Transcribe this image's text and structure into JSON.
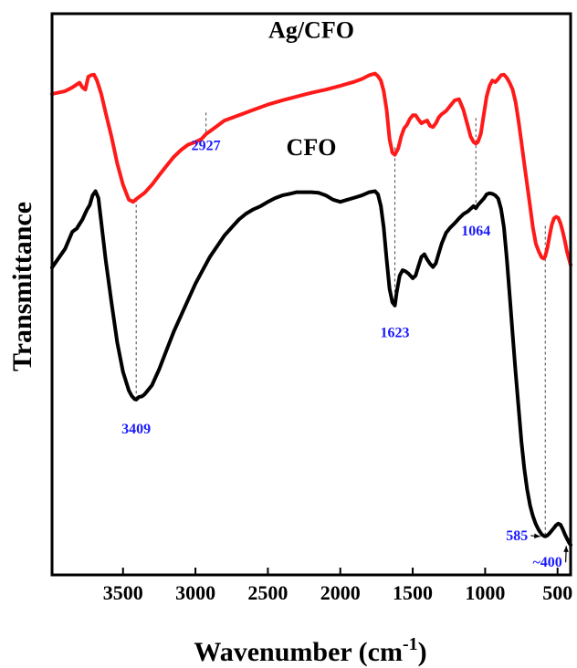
{
  "chart_data": {
    "type": "line",
    "xlabel_main": "Wavenumber (cm",
    "xlabel_sup": "-1",
    "xlabel_close": ")",
    "ylabel": "Transmittance",
    "xlim": [
      3990,
      410
    ],
    "x_reversed": true,
    "x_ticks": [
      3500,
      3000,
      2500,
      2000,
      1500,
      1000,
      500
    ],
    "y_ticks_shown": false,
    "grid": false,
    "colors": {
      "Ag/CFO": "#ff1a1a",
      "CFO": "#000000",
      "peak_labels": "#1a1aff",
      "axis": "#000000"
    },
    "series": [
      {
        "name": "Ag/CFO",
        "x": [
          3990,
          3900,
          3850,
          3800,
          3780,
          3760,
          3740,
          3720,
          3700,
          3680,
          3650,
          3620,
          3580,
          3540,
          3500,
          3460,
          3430,
          3400,
          3350,
          3300,
          3250,
          3200,
          3150,
          3100,
          3050,
          3000,
          2960,
          2927,
          2900,
          2850,
          2800,
          2700,
          2600,
          2500,
          2400,
          2300,
          2200,
          2100,
          2000,
          1900,
          1850,
          1800,
          1760,
          1740,
          1720,
          1700,
          1680,
          1660,
          1640,
          1623,
          1600,
          1580,
          1560,
          1540,
          1520,
          1500,
          1480,
          1460,
          1440,
          1420,
          1400,
          1380,
          1360,
          1340,
          1320,
          1300,
          1270,
          1240,
          1210,
          1180,
          1150,
          1120,
          1100,
          1080,
          1064,
          1050,
          1030,
          1010,
          990,
          970,
          950,
          930,
          910,
          890,
          870,
          850,
          830,
          810,
          790,
          770,
          750,
          730,
          710,
          690,
          670,
          650,
          630,
          610,
          595,
          585,
          570,
          555,
          540,
          525,
          510,
          495,
          480,
          465,
          450,
          435,
          420,
          410
        ],
        "y": [
          86.0,
          86.5,
          87.2,
          88.1,
          87.2,
          86.8,
          89.2,
          89.5,
          89.6,
          88.5,
          86.0,
          82.5,
          78.0,
          73.0,
          69.0,
          66.2,
          65.8,
          66.5,
          67.5,
          69.0,
          70.8,
          72.5,
          74.2,
          75.5,
          76.5,
          77.0,
          77.5,
          78.5,
          79.0,
          80.0,
          81.0,
          82.0,
          83.0,
          84.0,
          84.8,
          85.5,
          86.2,
          86.8,
          87.5,
          88.3,
          88.8,
          89.5,
          89.8,
          89.3,
          88.5,
          86.5,
          83.0,
          77.5,
          75.0,
          74.6,
          75.8,
          78.0,
          79.5,
          80.2,
          81.3,
          82.0,
          82.0,
          81.2,
          80.5,
          80.8,
          81.0,
          80.0,
          79.8,
          80.5,
          81.6,
          82.2,
          82.8,
          83.8,
          84.8,
          85.0,
          83.0,
          80.0,
          78.0,
          77.0,
          76.7,
          77.0,
          78.5,
          82.0,
          85.5,
          87.5,
          88.5,
          88.2,
          88.8,
          89.5,
          89.6,
          89.0,
          88.0,
          86.8,
          84.5,
          81.0,
          77.0,
          73.0,
          69.0,
          65.0,
          61.0,
          58.0,
          56.5,
          55.4,
          55.2,
          55.6,
          57.2,
          59.5,
          61.5,
          62.7,
          63.0,
          62.8,
          61.8,
          60.3,
          58.5,
          56.5,
          55.0,
          54.0
        ]
      },
      {
        "name": "CFO",
        "x": [
          3990,
          3900,
          3850,
          3820,
          3780,
          3750,
          3730,
          3710,
          3690,
          3670,
          3650,
          3620,
          3580,
          3540,
          3500,
          3460,
          3440,
          3420,
          3409,
          3390,
          3370,
          3350,
          3300,
          3250,
          3200,
          3150,
          3100,
          3050,
          3000,
          2950,
          2900,
          2850,
          2800,
          2750,
          2700,
          2650,
          2600,
          2550,
          2500,
          2450,
          2400,
          2350,
          2300,
          2250,
          2200,
          2150,
          2100,
          2050,
          2000,
          1950,
          1900,
          1850,
          1800,
          1760,
          1740,
          1720,
          1700,
          1680,
          1660,
          1640,
          1623,
          1610,
          1590,
          1570,
          1550,
          1530,
          1500,
          1480,
          1460,
          1440,
          1420,
          1400,
          1380,
          1360,
          1340,
          1320,
          1300,
          1270,
          1240,
          1210,
          1180,
          1150,
          1120,
          1100,
          1080,
          1064,
          1050,
          1030,
          1010,
          990,
          970,
          950,
          930,
          910,
          890,
          870,
          850,
          830,
          810,
          790,
          770,
          750,
          730,
          710,
          690,
          670,
          650,
          630,
          610,
          595,
          585,
          570,
          555,
          540,
          525,
          510,
          495,
          480,
          465,
          450,
          435,
          420,
          410
        ],
        "y": [
          53.5,
          57.0,
          60.2,
          60.8,
          62.5,
          64.3,
          65.2,
          67.0,
          67.8,
          66.5,
          62.0,
          55.0,
          47.0,
          39.5,
          34.0,
          30.5,
          29.5,
          28.9,
          28.8,
          29.3,
          29.4,
          29.8,
          31.5,
          34.5,
          38.0,
          41.5,
          44.5,
          47.5,
          50.5,
          53.0,
          55.5,
          57.5,
          59.5,
          61.0,
          62.5,
          63.6,
          64.4,
          65.0,
          65.8,
          66.5,
          67.0,
          67.3,
          67.6,
          67.6,
          67.6,
          67.5,
          67.0,
          66.2,
          65.8,
          66.2,
          66.6,
          67.0,
          67.6,
          67.8,
          67.2,
          65.0,
          61.0,
          55.0,
          49.5,
          47.0,
          46.4,
          49.0,
          52.0,
          53.0,
          52.8,
          52.4,
          51.5,
          52.0,
          53.8,
          55.5,
          56.0,
          55.0,
          54.2,
          53.6,
          54.3,
          56.2,
          58.0,
          60.0,
          61.0,
          61.8,
          62.7,
          63.5,
          64.0,
          64.5,
          65.0,
          64.6,
          65.2,
          65.8,
          66.4,
          67.2,
          67.4,
          67.3,
          67.0,
          66.4,
          64.5,
          61.0,
          55.0,
          48.0,
          41.0,
          34.0,
          27.5,
          21.0,
          16.0,
          12.0,
          9.0,
          7.0,
          5.5,
          4.4,
          3.6,
          3.3,
          3.2,
          3.4,
          3.8,
          4.3,
          4.8,
          5.3,
          5.6,
          5.4,
          4.6,
          3.6,
          2.8,
          2.0,
          1.6
        ]
      }
    ],
    "ylim": [
      -4,
      101
    ],
    "series_labels": [
      {
        "text": "Ag/CFO",
        "x": 2200,
        "y": 96.5
      },
      {
        "text": "CFO",
        "x": 2200,
        "y": 74.5
      }
    ],
    "peak_markers": [
      {
        "x": 3409,
        "y_top": 66.3,
        "y_bottom": 28.8
      },
      {
        "x": 2927,
        "y_top": 82.5,
        "y_bottom": 78.0
      },
      {
        "x": 1623,
        "y_top": 76.0,
        "y_bottom": 46.4
      },
      {
        "x": 1064,
        "y_top": 81.5,
        "y_bottom": 65.0
      },
      {
        "x": 585,
        "y_top": 61.3,
        "y_bottom": 3.2
      }
    ],
    "annotations": [
      {
        "text": "3409",
        "x": 3409,
        "y": 22.5
      },
      {
        "text": "2927",
        "x": 2927,
        "y": 75.5
      },
      {
        "text": "1623",
        "x": 1623,
        "y": 40.5
      },
      {
        "text": "1064",
        "x": 1064,
        "y": 59.5
      },
      {
        "text": "585",
        "x": 780,
        "y": 2.5,
        "arrow_to_x": 620,
        "arrow_to_y": 3.2
      },
      {
        "text": "~400",
        "x": 570,
        "y": -2.5,
        "arrow_to_x": 440,
        "arrow_to_y": 1.4
      }
    ]
  }
}
